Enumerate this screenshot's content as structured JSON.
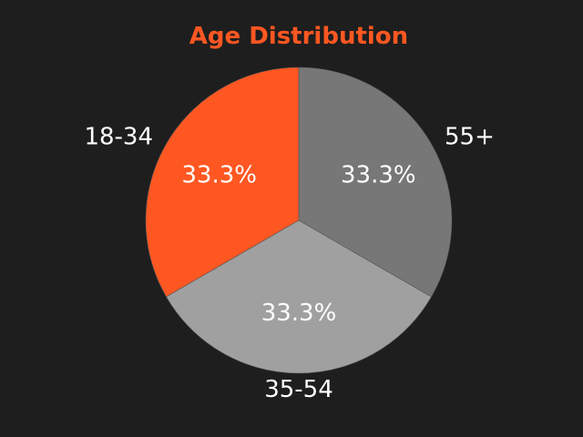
{
  "chart_data": {
    "type": "pie",
    "title": "Age Distribution",
    "categories": [
      "18-34",
      "35-54",
      "55+"
    ],
    "values": [
      33.3,
      33.3,
      33.3
    ],
    "percent_labels": [
      "33.3%",
      "33.3%",
      "33.3%"
    ],
    "colors": [
      "#ff5722",
      "#a0a0a0",
      "#777777"
    ],
    "start_angle_deg": 90,
    "direction": "counterclockwise"
  },
  "colors": {
    "background": "#1e1e1e",
    "title": "#ff5722",
    "label_text": "#ffffff"
  }
}
